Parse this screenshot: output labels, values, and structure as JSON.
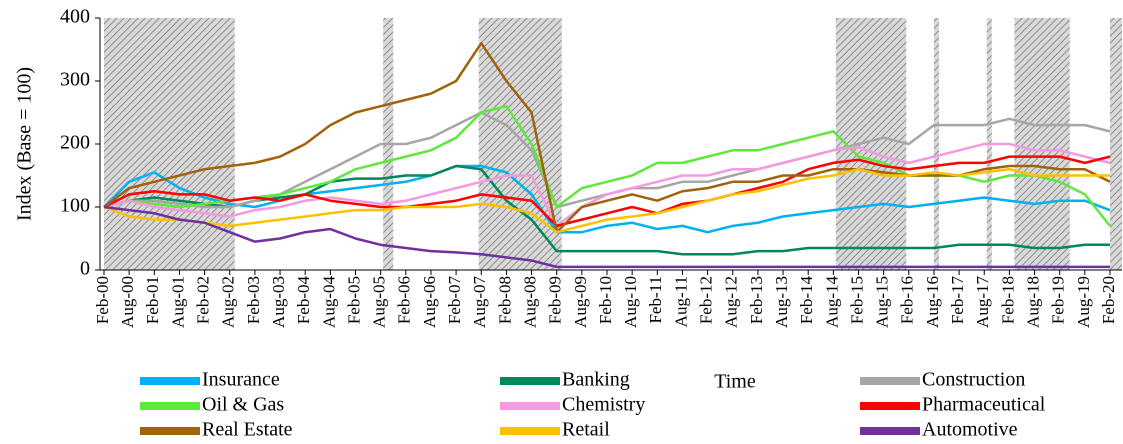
{
  "chart_data": {
    "type": "line",
    "y_label": "Index (Base = 100)",
    "x_label": "Time",
    "categories": [
      "Feb-00",
      "Aug-00",
      "Feb-01",
      "Aug-01",
      "Feb-02",
      "Aug-02",
      "Feb-03",
      "Aug-03",
      "Feb-04",
      "Aug-04",
      "Feb-05",
      "Aug-05",
      "Feb-06",
      "Aug-06",
      "Feb-07",
      "Aug-07",
      "Feb-08",
      "Aug-08",
      "Feb-09",
      "Aug-09",
      "Feb-10",
      "Aug-10",
      "Feb-11",
      "Aug-11",
      "Feb-12",
      "Aug-12",
      "Feb-13",
      "Aug-13",
      "Feb-14",
      "Aug-14",
      "Feb-15",
      "Aug-15",
      "Feb-16",
      "Aug-16",
      "Feb-17",
      "Aug-17",
      "Feb-18",
      "Aug-18",
      "Feb-19",
      "Aug-19",
      "Feb-20"
    ],
    "ylim": [
      0,
      400
    ],
    "yticks": [
      0,
      100,
      200,
      300,
      400
    ],
    "grid": false,
    "legend": "bottom",
    "shaded_periods": [
      [
        0,
        5.2
      ],
      [
        11.1,
        11.5
      ],
      [
        14.9,
        18.2
      ],
      [
        29.1,
        31.9
      ],
      [
        33.0,
        33.2
      ],
      [
        35.1,
        35.3
      ],
      [
        36.2,
        38.4
      ],
      [
        40.0,
        40.5
      ]
    ],
    "series": [
      {
        "name": "Insurance",
        "color": "#00b0f0",
        "values": [
          100,
          140,
          155,
          130,
          115,
          105,
          100,
          110,
          120,
          125,
          130,
          135,
          140,
          150,
          165,
          165,
          155,
          120,
          60,
          60,
          70,
          75,
          65,
          70,
          60,
          70,
          75,
          85,
          90,
          95,
          100,
          105,
          100,
          105,
          110,
          115,
          110,
          105,
          110,
          110,
          95
        ]
      },
      {
        "name": "Banking",
        "color": "#00875a",
        "values": [
          100,
          110,
          115,
          110,
          105,
          100,
          110,
          115,
          120,
          140,
          145,
          145,
          150,
          150,
          165,
          160,
          110,
          80,
          30,
          30,
          30,
          30,
          30,
          25,
          25,
          25,
          30,
          30,
          35,
          35,
          35,
          35,
          35,
          35,
          40,
          40,
          40,
          35,
          35,
          40,
          40
        ]
      },
      {
        "name": "Construction",
        "color": "#a6a6a6",
        "values": [
          100,
          110,
          110,
          105,
          100,
          100,
          110,
          120,
          140,
          160,
          180,
          200,
          200,
          210,
          230,
          250,
          230,
          190,
          100,
          110,
          120,
          130,
          130,
          140,
          140,
          150,
          160,
          170,
          180,
          190,
          200,
          210,
          200,
          230,
          230,
          230,
          240,
          230,
          230,
          230,
          220
        ]
      },
      {
        "name": "Oil & Gas",
        "color": "#5ee83c",
        "values": [
          100,
          110,
          105,
          100,
          105,
          110,
          115,
          120,
          130,
          140,
          160,
          170,
          180,
          190,
          210,
          250,
          260,
          200,
          100,
          130,
          140,
          150,
          170,
          170,
          180,
          190,
          190,
          200,
          210,
          220,
          180,
          170,
          150,
          150,
          150,
          140,
          150,
          150,
          140,
          120,
          70
        ]
      },
      {
        "name": "Chemistry",
        "color": "#f59ae0",
        "values": [
          100,
          110,
          100,
          95,
          90,
          85,
          95,
          100,
          110,
          115,
          110,
          105,
          110,
          120,
          130,
          140,
          150,
          150,
          70,
          100,
          120,
          130,
          140,
          150,
          150,
          160,
          160,
          170,
          180,
          190,
          195,
          180,
          170,
          180,
          190,
          200,
          200,
          190,
          190,
          180,
          170
        ]
      },
      {
        "name": "Pharmaceutical",
        "color": "#ff0000",
        "values": [
          100,
          120,
          125,
          120,
          120,
          110,
          115,
          110,
          120,
          110,
          105,
          100,
          100,
          105,
          110,
          120,
          115,
          110,
          70,
          80,
          90,
          100,
          90,
          105,
          110,
          120,
          130,
          140,
          160,
          170,
          175,
          165,
          160,
          165,
          170,
          170,
          180,
          180,
          180,
          170,
          180
        ]
      },
      {
        "name": "Real Estate",
        "color": "#a0620a",
        "values": [
          100,
          130,
          140,
          150,
          160,
          165,
          170,
          180,
          200,
          230,
          250,
          260,
          270,
          280,
          300,
          360,
          300,
          250,
          60,
          100,
          110,
          120,
          110,
          125,
          130,
          140,
          140,
          150,
          150,
          160,
          160,
          155,
          150,
          150,
          150,
          160,
          165,
          165,
          160,
          160,
          140
        ]
      },
      {
        "name": "Retail",
        "color": "#ffc000",
        "values": [
          100,
          85,
          80,
          80,
          75,
          70,
          75,
          80,
          85,
          90,
          95,
          95,
          100,
          100,
          100,
          105,
          100,
          90,
          60,
          70,
          80,
          85,
          90,
          100,
          110,
          120,
          125,
          135,
          145,
          150,
          160,
          150,
          150,
          155,
          150,
          155,
          160,
          150,
          150,
          150,
          150
        ]
      },
      {
        "name": "Automotive",
        "color": "#7030a0",
        "values": [
          100,
          95,
          90,
          80,
          75,
          60,
          45,
          50,
          60,
          65,
          50,
          40,
          35,
          30,
          28,
          25,
          20,
          15,
          5,
          5,
          5,
          5,
          5,
          5,
          5,
          5,
          5,
          5,
          5,
          5,
          5,
          5,
          5,
          5,
          5,
          5,
          5,
          5,
          5,
          5,
          5
        ]
      }
    ]
  }
}
